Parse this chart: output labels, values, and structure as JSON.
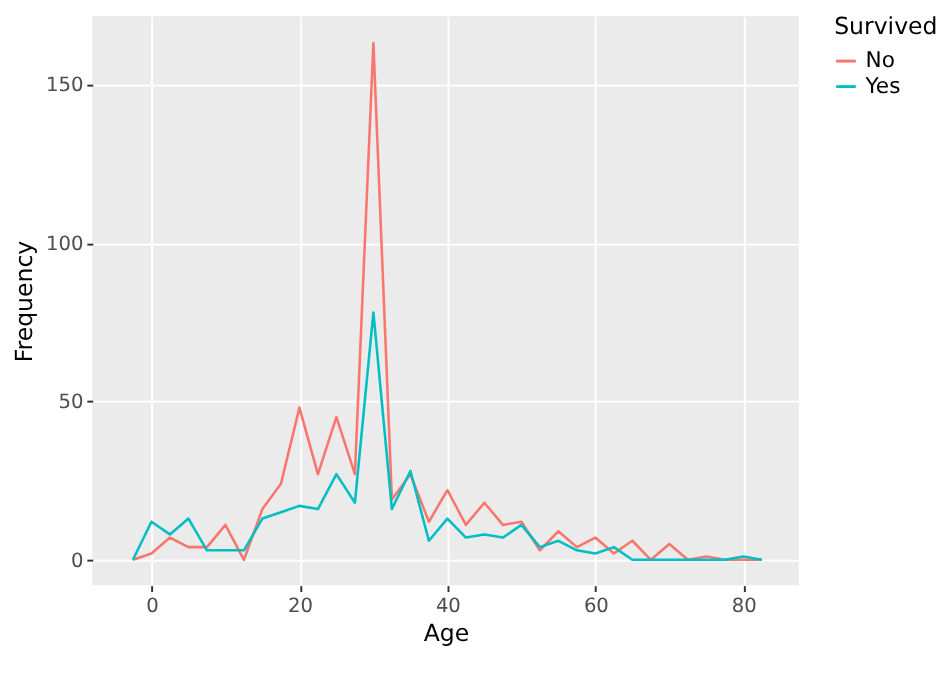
{
  "chart_data": {
    "type": "line",
    "xlabel": "Age",
    "ylabel": "Frequency",
    "legend_title": "Survived",
    "x": [
      -2.5,
      0,
      2.5,
      5,
      7.5,
      10,
      12.5,
      15,
      17.5,
      20,
      22.5,
      25,
      27.5,
      30,
      32.5,
      35,
      37.5,
      40,
      42.5,
      45,
      47.5,
      50,
      52.5,
      55,
      57.5,
      60,
      62.5,
      65,
      67.5,
      70,
      72.5,
      75,
      77.5,
      80,
      82.5
    ],
    "series": [
      {
        "name": "No",
        "color": "#f8766d",
        "values": [
          0,
          2,
          7,
          4,
          4,
          11,
          0,
          16,
          24,
          48,
          27,
          45,
          27,
          163,
          19,
          27,
          12,
          22,
          11,
          18,
          11,
          12,
          3,
          9,
          4,
          7,
          2,
          6,
          0,
          5,
          0,
          1,
          0,
          0,
          0
        ]
      },
      {
        "name": "Yes",
        "color": "#00bfc4",
        "values": [
          0,
          12,
          8,
          13,
          3,
          3,
          3,
          13,
          15,
          17,
          16,
          27,
          18,
          78,
          16,
          28,
          6,
          13,
          7,
          8,
          7,
          11,
          4,
          6,
          3,
          2,
          4,
          0,
          0,
          0,
          0,
          0,
          0,
          1,
          0
        ]
      }
    ],
    "xlim": [
      -8,
      87.5
    ],
    "ylim": [
      -8,
      171.5
    ],
    "xticks": [
      0,
      20,
      40,
      60,
      80
    ],
    "yticks": [
      0,
      50,
      100,
      150
    ],
    "grid": true,
    "legend": "right",
    "marker": "none",
    "line_style": "solid"
  }
}
